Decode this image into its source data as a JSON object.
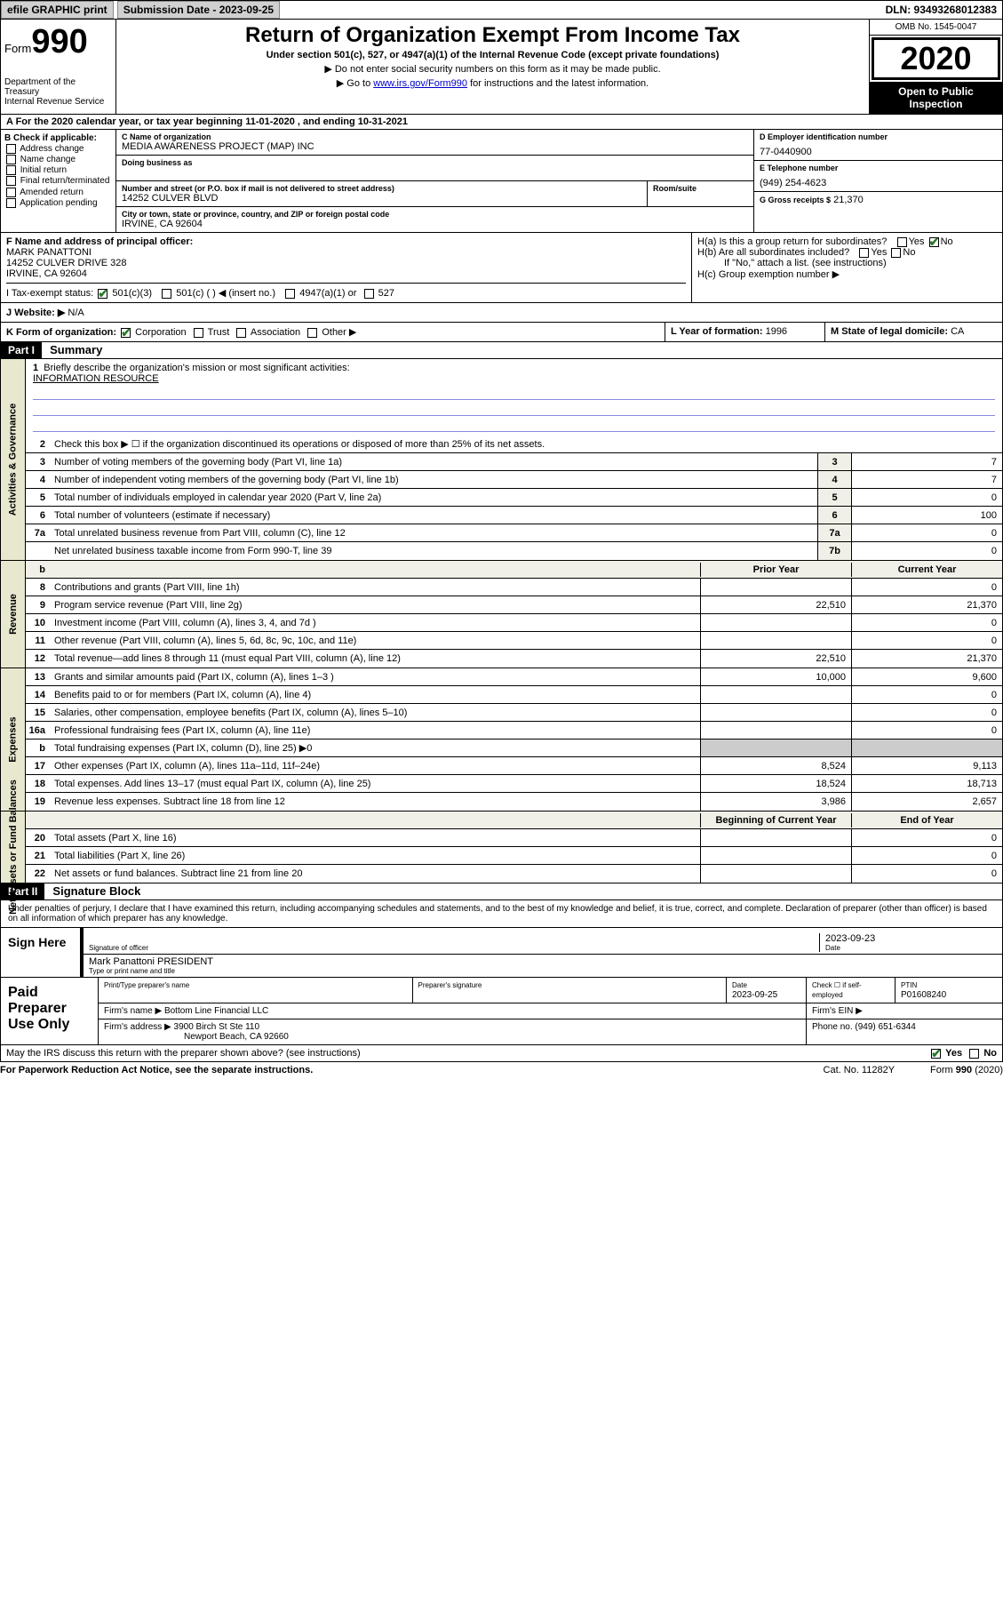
{
  "top": {
    "efile": "efile GRAPHIC print",
    "submission": "Submission Date - 2023-09-25",
    "dln": "DLN: 93493268012383"
  },
  "header": {
    "form_label": "Form",
    "form_num": "990",
    "dept": "Department of the Treasury\nInternal Revenue Service",
    "title": "Return of Organization Exempt From Income Tax",
    "subtitle": "Under section 501(c), 527, or 4947(a)(1) of the Internal Revenue Code (except private foundations)",
    "note1": "▶ Do not enter social security numbers on this form as it may be made public.",
    "note2_pre": "▶ Go to ",
    "note2_link": "www.irs.gov/Form990",
    "note2_post": " for instructions and the latest information.",
    "omb": "OMB No. 1545-0047",
    "year": "2020",
    "inspection": "Open to Public Inspection"
  },
  "row_a": "A For the 2020 calendar year, or tax year beginning 11-01-2020   , and ending 10-31-2021",
  "box_b": {
    "title": "B Check if applicable:",
    "items": [
      "Address change",
      "Name change",
      "Initial return",
      "Final return/terminated",
      "Amended return",
      "Application pending"
    ]
  },
  "box_c": {
    "name_label": "C Name of organization",
    "name": "MEDIA AWARENESS PROJECT (MAP) INC",
    "dba_label": "Doing business as",
    "addr_label": "Number and street (or P.O. box if mail is not delivered to street address)",
    "addr": "14252 CULVER BLVD",
    "room_label": "Room/suite",
    "city_label": "City or town, state or province, country, and ZIP or foreign postal code",
    "city": "IRVINE, CA  92604"
  },
  "box_d": {
    "ein_label": "D Employer identification number",
    "ein": "77-0440900",
    "phone_label": "E Telephone number",
    "phone": "(949) 254-4623",
    "gross_label": "G Gross receipts $",
    "gross": "21,370"
  },
  "box_f": {
    "label": "F  Name and address of principal officer:",
    "name": "MARK PANATTONI",
    "addr1": "14252 CULVER DRIVE 328",
    "addr2": "IRVINE, CA  92604"
  },
  "box_h": {
    "a": "H(a)  Is this a group return for subordinates?",
    "b": "H(b)  Are all subordinates included?",
    "note": "If \"No,\" attach a list. (see instructions)",
    "c": "H(c)  Group exemption number ▶"
  },
  "row_i": {
    "label": "I   Tax-exempt status:",
    "opt1": "501(c)(3)",
    "opt2": "501(c) (  ) ◀ (insert no.)",
    "opt3": "4947(a)(1) or",
    "opt4": "527"
  },
  "row_j": {
    "label": "J   Website: ▶",
    "value": " N/A"
  },
  "row_k": {
    "label": "K Form of organization:",
    "opts": [
      "Corporation",
      "Trust",
      "Association",
      "Other ▶"
    ],
    "l_label": "L Year of formation:",
    "l_val": "1996",
    "m_label": "M State of legal domicile:",
    "m_val": "CA"
  },
  "part1": {
    "header": "Part I",
    "title": "Summary",
    "side_label1": "Activities & Governance",
    "side_label2": "Revenue",
    "side_label3": "Expenses",
    "side_label4": "Net Assets or Fund Balances",
    "line1_label": "Briefly describe the organization's mission or most significant activities:",
    "line1_val": "INFORMATION RESOURCE",
    "line2": "Check this box ▶ ☐  if the organization discontinued its operations or disposed of more than 25% of its net assets.",
    "lines": [
      {
        "n": "3",
        "t": "Number of voting members of the governing body (Part VI, line 1a)",
        "box": "3",
        "v": "7"
      },
      {
        "n": "4",
        "t": "Number of independent voting members of the governing body (Part VI, line 1b)",
        "box": "4",
        "v": "7"
      },
      {
        "n": "5",
        "t": "Total number of individuals employed in calendar year 2020 (Part V, line 2a)",
        "box": "5",
        "v": "0"
      },
      {
        "n": "6",
        "t": "Total number of volunteers (estimate if necessary)",
        "box": "6",
        "v": "100"
      },
      {
        "n": "7a",
        "t": "Total unrelated business revenue from Part VIII, column (C), line 12",
        "box": "7a",
        "v": "0"
      },
      {
        "n": "",
        "t": "Net unrelated business taxable income from Form 990-T, line 39",
        "box": "7b",
        "v": "0"
      }
    ],
    "col_headers": {
      "b": "b",
      "prior": "Prior Year",
      "current": "Current Year"
    },
    "rev_lines": [
      {
        "n": "8",
        "t": "Contributions and grants (Part VIII, line 1h)",
        "a": "",
        "b": "0"
      },
      {
        "n": "9",
        "t": "Program service revenue (Part VIII, line 2g)",
        "a": "22,510",
        "b": "21,370"
      },
      {
        "n": "10",
        "t": "Investment income (Part VIII, column (A), lines 3, 4, and 7d )",
        "a": "",
        "b": "0"
      },
      {
        "n": "11",
        "t": "Other revenue (Part VIII, column (A), lines 5, 6d, 8c, 9c, 10c, and 11e)",
        "a": "",
        "b": "0"
      },
      {
        "n": "12",
        "t": "Total revenue—add lines 8 through 11 (must equal Part VIII, column (A), line 12)",
        "a": "22,510",
        "b": "21,370"
      }
    ],
    "exp_lines": [
      {
        "n": "13",
        "t": "Grants and similar amounts paid (Part IX, column (A), lines 1–3 )",
        "a": "10,000",
        "b": "9,600"
      },
      {
        "n": "14",
        "t": "Benefits paid to or for members (Part IX, column (A), line 4)",
        "a": "",
        "b": "0"
      },
      {
        "n": "15",
        "t": "Salaries, other compensation, employee benefits (Part IX, column (A), lines 5–10)",
        "a": "",
        "b": "0"
      },
      {
        "n": "16a",
        "t": "Professional fundraising fees (Part IX, column (A), line 11e)",
        "a": "",
        "b": "0"
      },
      {
        "n": "b",
        "t": "Total fundraising expenses (Part IX, column (D), line 25) ▶0",
        "a": "gray",
        "b": "gray"
      },
      {
        "n": "17",
        "t": "Other expenses (Part IX, column (A), lines 11a–11d, 11f–24e)",
        "a": "8,524",
        "b": "9,113"
      },
      {
        "n": "18",
        "t": "Total expenses. Add lines 13–17 (must equal Part IX, column (A), line 25)",
        "a": "18,524",
        "b": "18,713"
      },
      {
        "n": "19",
        "t": "Revenue less expenses. Subtract line 18 from line 12",
        "a": "3,986",
        "b": "2,657"
      }
    ],
    "net_headers": {
      "a": "Beginning of Current Year",
      "b": "End of Year"
    },
    "net_lines": [
      {
        "n": "20",
        "t": "Total assets (Part X, line 16)",
        "a": "",
        "b": "0"
      },
      {
        "n": "21",
        "t": "Total liabilities (Part X, line 26)",
        "a": "",
        "b": "0"
      },
      {
        "n": "22",
        "t": "Net assets or fund balances. Subtract line 21 from line 20",
        "a": "",
        "b": "0"
      }
    ]
  },
  "part2": {
    "header": "Part II",
    "title": "Signature Block",
    "declaration": "Under penalties of perjury, I declare that I have examined this return, including accompanying schedules and statements, and to the best of my knowledge and belief, it is true, correct, and complete. Declaration of preparer (other than officer) is based on all information of which preparer has any knowledge."
  },
  "sign": {
    "label": "Sign Here",
    "sig_label": "Signature of officer",
    "date_label": "Date",
    "date": "2023-09-23",
    "name": "Mark Panattoni PRESIDENT",
    "name_label": "Type or print name and title"
  },
  "prep": {
    "label": "Paid Preparer Use Only",
    "pt_name_label": "Print/Type preparer's name",
    "sig_label": "Preparer's signature",
    "date_label": "Date",
    "date": "2023-09-25",
    "check_label": "Check ☐ if self-employed",
    "ptin_label": "PTIN",
    "ptin": "P01608240",
    "firm_name_label": "Firm's name   ▶",
    "firm_name": "Bottom Line Financial LLC",
    "firm_ein_label": "Firm's EIN ▶",
    "firm_addr_label": "Firm's address ▶",
    "firm_addr1": "3900 Birch St Ste 110",
    "firm_addr2": "Newport Beach, CA  92660",
    "phone_label": "Phone no.",
    "phone": "(949) 651-6344"
  },
  "footer": {
    "discuss": "May the IRS discuss this return with the preparer shown above? (see instructions)",
    "yes": "Yes",
    "no": "No",
    "paperwork": "For Paperwork Reduction Act Notice, see the separate instructions.",
    "cat": "Cat. No. 11282Y",
    "form": "Form 990 (2020)"
  }
}
